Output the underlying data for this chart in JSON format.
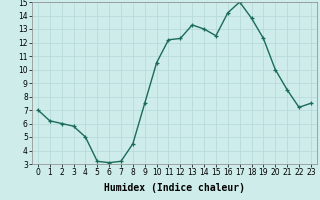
{
  "x": [
    0,
    1,
    2,
    3,
    4,
    5,
    6,
    7,
    8,
    9,
    10,
    11,
    12,
    13,
    14,
    15,
    16,
    17,
    18,
    19,
    20,
    21,
    22,
    23
  ],
  "y": [
    7.0,
    6.2,
    6.0,
    5.8,
    5.0,
    3.2,
    3.1,
    3.2,
    4.5,
    7.5,
    10.5,
    12.2,
    12.3,
    13.3,
    13.0,
    12.5,
    14.2,
    15.0,
    13.8,
    12.3,
    10.0,
    8.5,
    7.2,
    7.5
  ],
  "line_color": "#1a6b5a",
  "bg_color": "#ceecea",
  "grid_color": "#b8dbd9",
  "xlabel": "Humidex (Indice chaleur)",
  "ylim": [
    3,
    15
  ],
  "xlim_min": -0.5,
  "xlim_max": 23.5,
  "yticks": [
    3,
    4,
    5,
    6,
    7,
    8,
    9,
    10,
    11,
    12,
    13,
    14,
    15
  ],
  "xticks": [
    0,
    1,
    2,
    3,
    4,
    5,
    6,
    7,
    8,
    9,
    10,
    11,
    12,
    13,
    14,
    15,
    16,
    17,
    18,
    19,
    20,
    21,
    22,
    23
  ],
  "marker": "+",
  "marker_size": 3.5,
  "line_width": 1.0,
  "xlabel_fontsize": 7,
  "tick_fontsize": 5.5
}
